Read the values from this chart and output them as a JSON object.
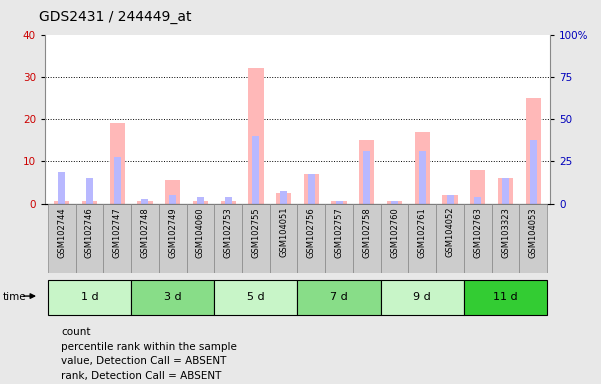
{
  "title": "GDS2431 / 244449_at",
  "samples": [
    "GSM102744",
    "GSM102746",
    "GSM102747",
    "GSM102748",
    "GSM102749",
    "GSM104060",
    "GSM102753",
    "GSM102755",
    "GSM104051",
    "GSM102756",
    "GSM102757",
    "GSM102758",
    "GSM102760",
    "GSM102761",
    "GSM104052",
    "GSM102763",
    "GSM103323",
    "GSM104053"
  ],
  "groups": [
    {
      "label": "1 d",
      "indices": [
        0,
        1,
        2
      ],
      "color": "#c8f5c8"
    },
    {
      "label": "3 d",
      "indices": [
        3,
        4,
        5
      ],
      "color": "#88dd88"
    },
    {
      "label": "5 d",
      "indices": [
        6,
        7,
        8
      ],
      "color": "#c8f5c8"
    },
    {
      "label": "7 d",
      "indices": [
        9,
        10,
        11
      ],
      "color": "#88dd88"
    },
    {
      "label": "9 d",
      "indices": [
        12,
        13,
        14
      ],
      "color": "#c8f5c8"
    },
    {
      "label": "11 d",
      "indices": [
        15,
        16,
        17
      ],
      "color": "#33cc33"
    }
  ],
  "pink_values": [
    0.5,
    0.5,
    19.0,
    0.5,
    5.5,
    0.5,
    0.5,
    32.0,
    2.5,
    7.0,
    0.5,
    15.0,
    0.5,
    17.0,
    2.0,
    8.0,
    6.0,
    25.0
  ],
  "blue_values": [
    7.5,
    6.0,
    11.0,
    1.0,
    2.0,
    1.5,
    1.5,
    16.0,
    3.0,
    7.0,
    0.5,
    12.5,
    0.5,
    12.5,
    2.0,
    1.5,
    6.0,
    15.0
  ],
  "pink_color": "#ffb8b8",
  "blue_color": "#b8b8ff",
  "ylim_left": [
    0,
    40
  ],
  "ylim_right": [
    0,
    100
  ],
  "yticks_left": [
    0,
    10,
    20,
    30,
    40
  ],
  "yticks_right": [
    0,
    25,
    50,
    75,
    100
  ],
  "ytick_labels_right": [
    "0",
    "25",
    "50",
    "75",
    "100%"
  ],
  "ylabel_left_color": "#cc0000",
  "ylabel_right_color": "#0000bb",
  "bg_color": "#e8e8e8",
  "plot_bg": "#ffffff",
  "sample_bg": "#cccccc",
  "legend_items": [
    {
      "color": "#cc0000",
      "label": "count"
    },
    {
      "color": "#0000cc",
      "label": "percentile rank within the sample"
    },
    {
      "color": "#ffb8b8",
      "label": "value, Detection Call = ABSENT"
    },
    {
      "color": "#b8b8ff",
      "label": "rank, Detection Call = ABSENT"
    }
  ]
}
